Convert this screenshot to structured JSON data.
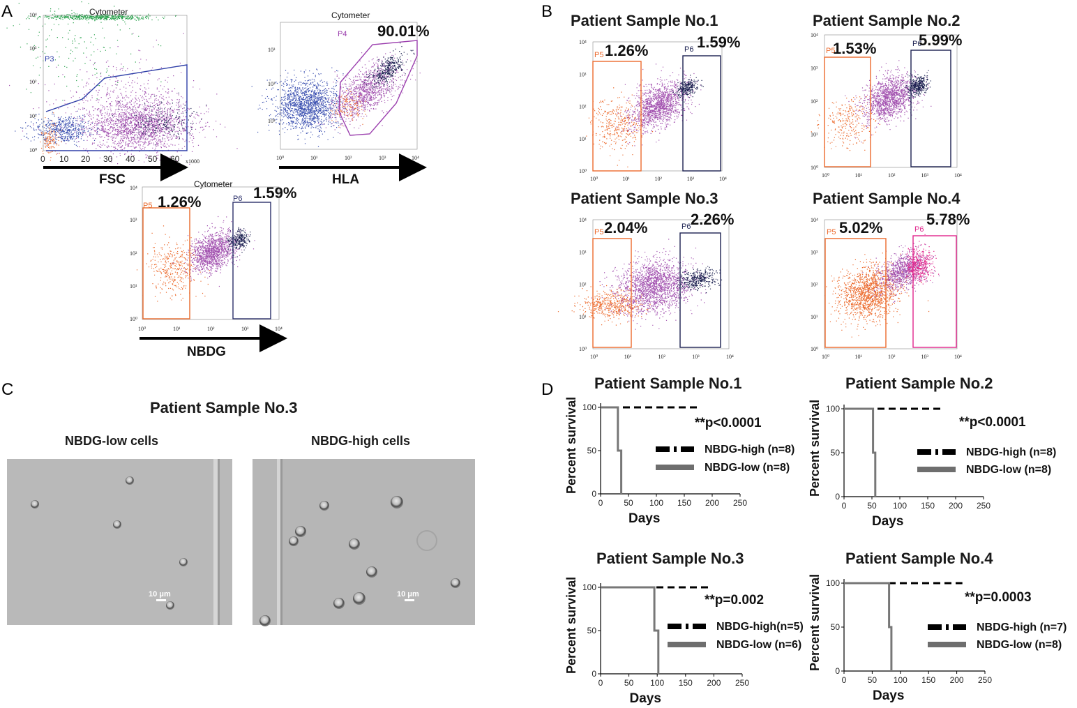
{
  "panel_labels": {
    "a": "A",
    "b": "B",
    "c": "C",
    "d": "D"
  },
  "panel_a": {
    "fsc": {
      "title": "Cytometer",
      "gate_label": "P3",
      "x_axis_title": "FSC",
      "x_multiplier": "x1000",
      "x_ticks": [
        "0",
        "10",
        "20",
        "30",
        "40",
        "50",
        "60"
      ],
      "y_ticks": [
        "10⁰",
        "10¹",
        "10²",
        "10³",
        "10⁴"
      ]
    },
    "hla": {
      "title": "Cytometer",
      "gate_label": "P4",
      "percent": "90.01%",
      "x_axis_title": "HLA",
      "x_ticks": [
        "10⁰",
        "10¹",
        "10²",
        "10³",
        "10⁴"
      ],
      "y_ticks": [
        "10¹",
        "10²",
        "10³"
      ]
    },
    "nbdg": {
      "title": "Cytometer",
      "gate_p5_label": "P5",
      "gate_p5_percent": "1.26%",
      "gate_p6_label": "P6",
      "gate_p6_percent": "1.59%",
      "x_axis_title": "NBDG",
      "x_ticks": [
        "10⁰",
        "10¹",
        "10²",
        "10³",
        "10⁴"
      ],
      "y_ticks": [
        "10⁰",
        "10¹",
        "10²",
        "10³",
        "10⁴"
      ]
    }
  },
  "panel_b": [
    {
      "title": "Patient Sample No.1",
      "p5_label": "P5",
      "p5_percent": "1.26%",
      "p6_label": "P6",
      "p6_percent": "1.59%"
    },
    {
      "title": "Patient Sample No.2",
      "p5_label": "P5",
      "p5_percent": "1.53%",
      "p6_label": "P6",
      "p6_percent": "5.99%"
    },
    {
      "title": "Patient Sample No.3",
      "p5_label": "P5",
      "p5_percent": "2.04%",
      "p6_label": "P6",
      "p6_percent": "2.26%"
    },
    {
      "title": "Patient Sample No.4",
      "p5_label": "P5",
      "p5_percent": "5.02%",
      "p6_label": "P6",
      "p6_percent": "5.78%"
    }
  ],
  "panel_b_ticks": [
    "10⁰",
    "10¹",
    "10²",
    "10³",
    "10⁴"
  ],
  "panel_c": {
    "title": "Patient Sample No.3",
    "left_label": "NBDG-low cells",
    "right_label": "NBDG-high cells",
    "scale_bar": "10 μm"
  },
  "chart_data": [
    {
      "type": "line",
      "title": "Patient Sample No.1",
      "xlabel": "Days",
      "ylabel": "Percent survival",
      "xlim": [
        0,
        250
      ],
      "ylim": [
        0,
        100
      ],
      "x_ticks": [
        0,
        50,
        100,
        150,
        200,
        250
      ],
      "y_ticks": [
        0,
        50,
        100
      ],
      "p_value": "**p<0.0001",
      "series": [
        {
          "name": "NBDG-high (n=8)",
          "style": "dashed",
          "x": [
            0,
            175
          ],
          "values": [
            100,
            100
          ]
        },
        {
          "name": "NBDG-low (n=8)",
          "style": "solid",
          "x": [
            0,
            31,
            31,
            37,
            37
          ],
          "values": [
            100,
            100,
            50,
            50,
            0
          ]
        }
      ]
    },
    {
      "type": "line",
      "title": "Patient Sample No.2",
      "xlabel": "Days",
      "ylabel": "Percent survival",
      "xlim": [
        0,
        250
      ],
      "ylim": [
        0,
        100
      ],
      "x_ticks": [
        0,
        50,
        100,
        150,
        200,
        250
      ],
      "y_ticks": [
        0,
        50,
        100
      ],
      "p_value": "**p<0.0001",
      "series": [
        {
          "name": "NBDG-high (n=8)",
          "style": "dashed",
          "x": [
            0,
            175
          ],
          "values": [
            100,
            100
          ]
        },
        {
          "name": "NBDG-low (n=8)",
          "style": "solid",
          "x": [
            0,
            52,
            52,
            56,
            56
          ],
          "values": [
            100,
            100,
            50,
            50,
            0
          ]
        }
      ]
    },
    {
      "type": "line",
      "title": "Patient Sample No.3",
      "xlabel": "Days",
      "ylabel": "Percent survival",
      "xlim": [
        0,
        250
      ],
      "ylim": [
        0,
        100
      ],
      "x_ticks": [
        0,
        50,
        100,
        150,
        200,
        250
      ],
      "y_ticks": [
        0,
        50,
        100
      ],
      "p_value": "**p=0.002",
      "series": [
        {
          "name": "NBDG-high(n=5)",
          "style": "dashed",
          "x": [
            0,
            190
          ],
          "values": [
            100,
            100
          ]
        },
        {
          "name": "NBDG-low (n=6)",
          "style": "solid",
          "x": [
            0,
            95,
            95,
            102,
            102
          ],
          "values": [
            100,
            100,
            50,
            50,
            0
          ]
        }
      ]
    },
    {
      "type": "line",
      "title": "Patient Sample No.4",
      "xlabel": "Days",
      "ylabel": "Percent survival",
      "xlim": [
        0,
        250
      ],
      "ylim": [
        0,
        100
      ],
      "x_ticks": [
        0,
        50,
        100,
        150,
        200,
        250
      ],
      "y_ticks": [
        0,
        50,
        100
      ],
      "p_value": "**p=0.0003",
      "series": [
        {
          "name": "NBDG-high (n=7)",
          "style": "dashed",
          "x": [
            0,
            210
          ],
          "values": [
            100,
            100
          ]
        },
        {
          "name": "NBDG-low (n=8)",
          "style": "solid",
          "x": [
            0,
            80,
            80,
            84,
            84
          ],
          "values": [
            100,
            100,
            50,
            50,
            0
          ]
        }
      ]
    }
  ]
}
